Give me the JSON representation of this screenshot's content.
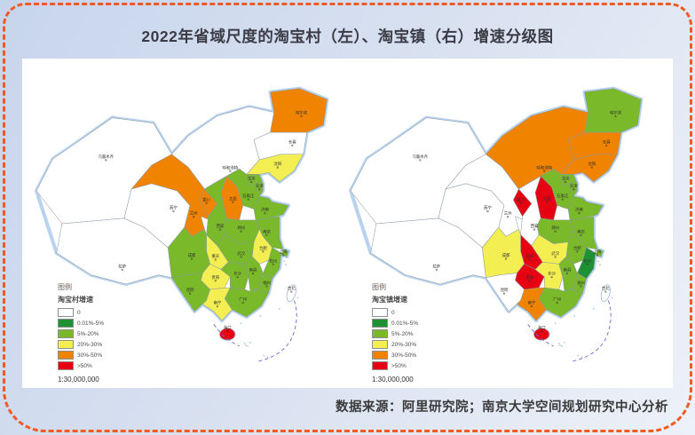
{
  "title": "2022年省域尺度的淘宝村（左）、淘宝镇（右）增速分级图",
  "source": "数据来源：阿里研究院；南京大学空间规划研究中心分析",
  "maps": [
    {
      "id": "village",
      "legend_title": "淘宝村增速"
    },
    {
      "id": "town",
      "legend_title": "淘宝镇增速"
    }
  ],
  "legend": {
    "header": "图例",
    "scale": "1:30,000,000",
    "classes": [
      {
        "key": "zero",
        "label": "0",
        "color": "#ffffff"
      },
      {
        "key": "p0_5",
        "label": "0.01%-5%",
        "color": "#1f9134"
      },
      {
        "key": "p5_20",
        "label": "5%-20%",
        "color": "#7ab929"
      },
      {
        "key": "p20_30",
        "label": "20%-30%",
        "color": "#f3ee51"
      },
      {
        "key": "p30_50",
        "label": "30%-50%",
        "color": "#f08300"
      },
      {
        "key": "p50",
        "label": ">50%",
        "color": "#e60012"
      }
    ]
  },
  "chart_data": {
    "type": "heatmap",
    "title": "2022年省域尺度的淘宝村（左）、淘宝镇（右）增速分级图",
    "legend_position": "bottom-left",
    "categories": [
      "0",
      "0.01%-5%",
      "5%-20%",
      "20%-30%",
      "30%-50%",
      ">50%"
    ],
    "series": [
      {
        "name": "淘宝村增速",
        "values_by_province": "see provinces[].village"
      },
      {
        "name": "淘宝镇增速",
        "values_by_province": "see provinces[].town"
      }
    ]
  },
  "provinces": [
    {
      "id": "xinjiang",
      "capital": "乌鲁木齐",
      "village": "zero",
      "town": "zero"
    },
    {
      "id": "xizang",
      "capital": "拉萨",
      "village": "zero",
      "town": "zero"
    },
    {
      "id": "qinghai",
      "capital": "西宁",
      "village": "zero",
      "town": "zero"
    },
    {
      "id": "gansu",
      "capital": "兰州",
      "village": "p30_50",
      "town": "zero"
    },
    {
      "id": "neimenggu",
      "capital": "呼和浩特",
      "village": "zero",
      "town": "p30_50"
    },
    {
      "id": "ningxia",
      "capital": "银川",
      "village": "p30_50",
      "town": "p50"
    },
    {
      "id": "heilongjiang",
      "capital": "哈尔滨",
      "village": "p30_50",
      "town": "p5_20"
    },
    {
      "id": "jilin",
      "capital": "长春",
      "village": "zero",
      "town": "p30_50"
    },
    {
      "id": "liaoning",
      "capital": "沈阳",
      "village": "p20_30",
      "town": "p30_50"
    },
    {
      "id": "hebei",
      "capital": "石家庄",
      "village": "p5_20",
      "town": "p5_20"
    },
    {
      "id": "beijing",
      "capital": "北京",
      "village": "p5_20",
      "town": "p5_20"
    },
    {
      "id": "tianjin",
      "capital": "天津",
      "village": "p5_20",
      "town": "p5_20"
    },
    {
      "id": "shanxi",
      "capital": "太原",
      "village": "p30_50",
      "town": "p50"
    },
    {
      "id": "shaanxi",
      "capital": "西安",
      "village": "p5_20",
      "town": "zero"
    },
    {
      "id": "shandong",
      "capital": "济南",
      "village": "p5_20",
      "town": "p5_20"
    },
    {
      "id": "henan",
      "capital": "郑州",
      "village": "p5_20",
      "town": "p5_20"
    },
    {
      "id": "jiangsu",
      "capital": "南京",
      "village": "p5_20",
      "town": "p5_20"
    },
    {
      "id": "anhui",
      "capital": "合肥",
      "village": "p20_30",
      "town": "p5_20"
    },
    {
      "id": "shanghai",
      "capital": "上海",
      "village": "p5_20",
      "town": "p5_20"
    },
    {
      "id": "zhejiang",
      "capital": "杭州",
      "village": "p5_20",
      "town": "p0_5"
    },
    {
      "id": "hubei",
      "capital": "武汉",
      "village": "p5_20",
      "town": "p20_30"
    },
    {
      "id": "chongqing",
      "capital": "重庆",
      "village": "p20_30",
      "town": "p50"
    },
    {
      "id": "sichuan",
      "capital": "成都",
      "village": "p5_20",
      "town": "p20_30"
    },
    {
      "id": "guizhou",
      "capital": "贵阳",
      "village": "p20_30",
      "town": "p50"
    },
    {
      "id": "yunnan",
      "capital": "昆明",
      "village": "p5_20",
      "town": "zero"
    },
    {
      "id": "hunan",
      "capital": "长沙",
      "village": "p5_20",
      "town": "p20_30"
    },
    {
      "id": "jiangxi",
      "capital": "南昌",
      "village": "p5_20",
      "town": "p5_20"
    },
    {
      "id": "fujian",
      "capital": "福州",
      "village": "p5_20",
      "town": "p5_20"
    },
    {
      "id": "guangdong",
      "capital": "广州",
      "village": "p5_20",
      "town": "p5_20"
    },
    {
      "id": "guangxi",
      "capital": "南宁",
      "village": "p20_30",
      "town": "p30_50"
    },
    {
      "id": "hainan",
      "capital": "海口",
      "village": "p50",
      "town": "p50"
    },
    {
      "id": "taiwan",
      "capital": "台北",
      "village": "zero",
      "town": "zero"
    }
  ]
}
